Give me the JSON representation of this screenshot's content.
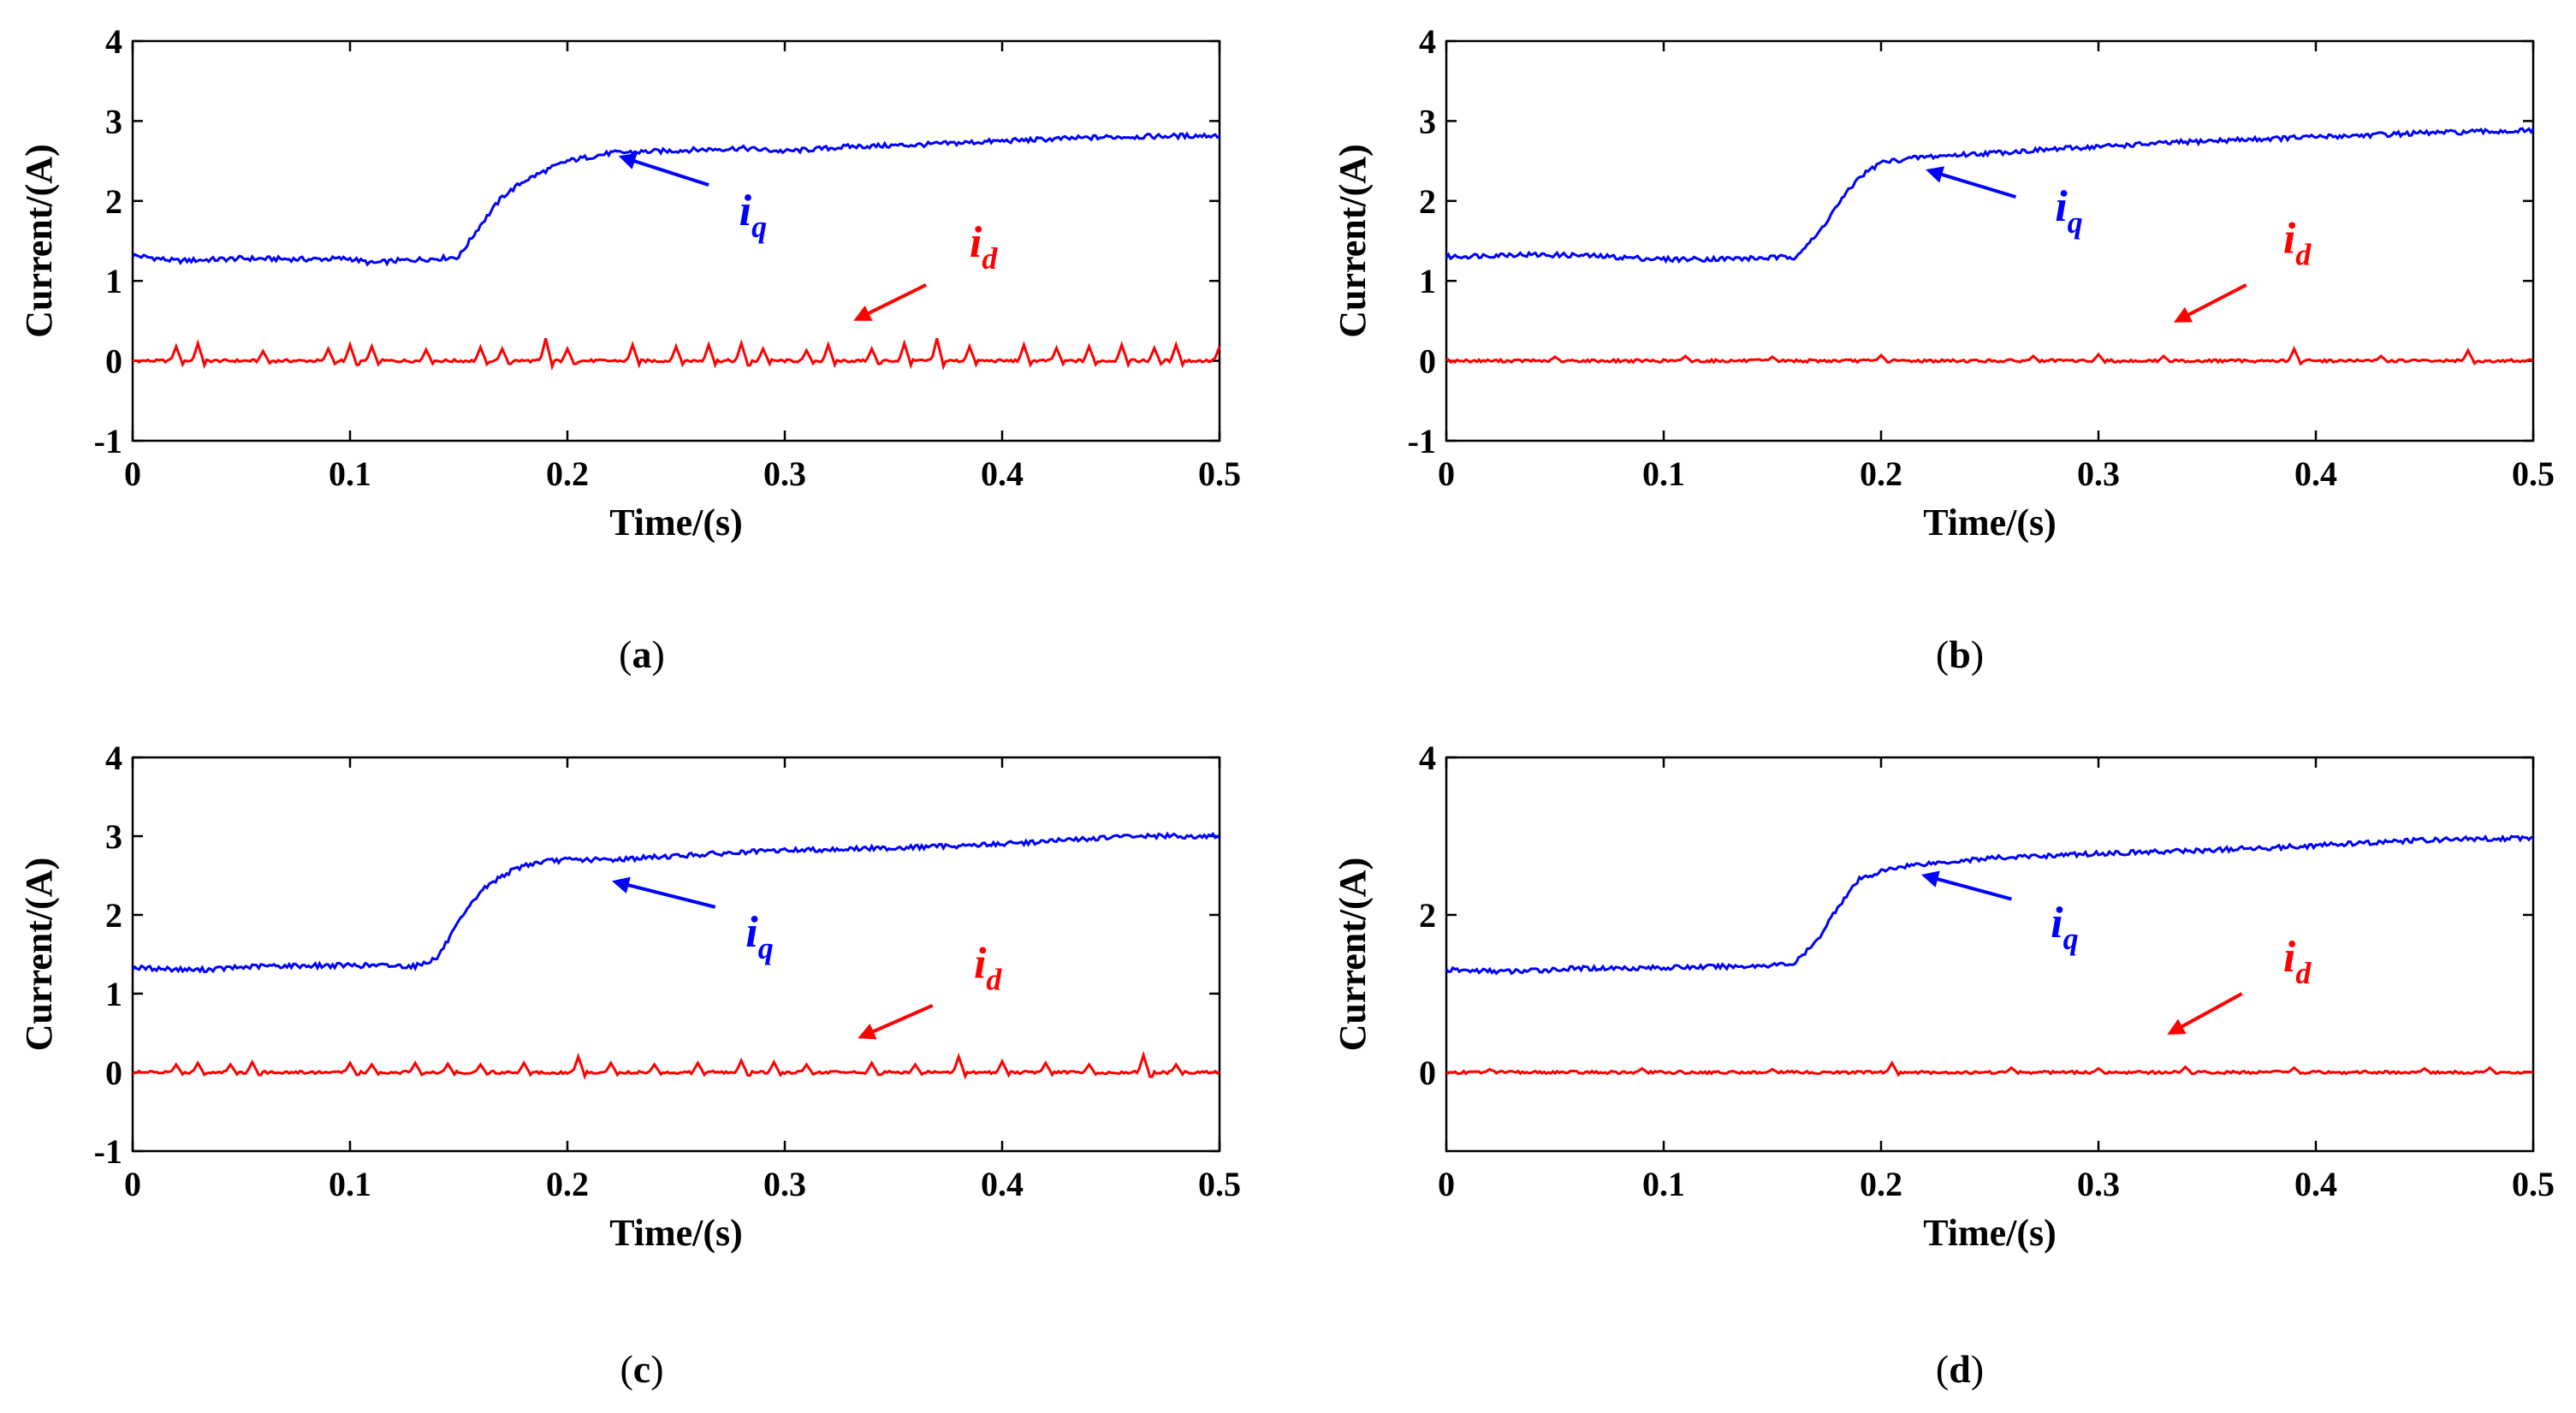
{
  "colors": {
    "iq": "#0000ff",
    "id": "#ff0000",
    "axis": "#000000"
  },
  "chart_data": [
    {
      "type": "line",
      "caption_label": "a",
      "xlabel": "Time/(s)",
      "ylabel": "Current/(A)",
      "xlim": [
        0,
        0.5
      ],
      "ylim": [
        -1,
        4
      ],
      "xticks": [
        0,
        0.1,
        0.2,
        0.3,
        0.4,
        0.5
      ],
      "yticks": [
        -1,
        0,
        1,
        2,
        3,
        4
      ],
      "xtick_labels": [
        "0",
        "0.1",
        "0.2",
        "0.3",
        "0.4",
        "0.5"
      ],
      "ytick_labels": [
        "-1",
        "0",
        "1",
        "2",
        "3",
        "4"
      ],
      "series": [
        {
          "name": "iq",
          "label_main": "i",
          "label_sub": "q",
          "x": [
            0,
            0.02,
            0.05,
            0.08,
            0.1,
            0.11,
            0.12,
            0.14,
            0.15,
            0.16,
            0.17,
            0.18,
            0.19,
            0.2,
            0.22,
            0.25,
            0.28,
            0.3,
            0.33,
            0.36,
            0.4,
            0.45,
            0.5
          ],
          "values": [
            1.32,
            1.25,
            1.28,
            1.27,
            1.28,
            1.22,
            1.25,
            1.28,
            1.3,
            1.7,
            2.05,
            2.25,
            2.38,
            2.5,
            2.6,
            2.63,
            2.66,
            2.62,
            2.68,
            2.7,
            2.75,
            2.8,
            2.82
          ]
        },
        {
          "name": "id",
          "label_main": "i",
          "label_sub": "d",
          "baseline": 0.0,
          "spikes": [
            [
              0.02,
              0.18
            ],
            [
              0.03,
              0.22
            ],
            [
              0.06,
              0.12
            ],
            [
              0.09,
              0.15
            ],
            [
              0.1,
              0.2
            ],
            [
              0.11,
              0.18
            ],
            [
              0.135,
              0.14
            ],
            [
              0.16,
              0.17
            ],
            [
              0.17,
              0.15
            ],
            [
              0.19,
              0.28
            ],
            [
              0.2,
              0.15
            ],
            [
              0.23,
              0.2
            ],
            [
              0.25,
              0.18
            ],
            [
              0.265,
              0.2
            ],
            [
              0.28,
              0.22
            ],
            [
              0.29,
              0.15
            ],
            [
              0.31,
              0.13
            ],
            [
              0.32,
              0.2
            ],
            [
              0.34,
              0.15
            ],
            [
              0.355,
              0.22
            ],
            [
              0.37,
              0.28
            ],
            [
              0.385,
              0.18
            ],
            [
              0.41,
              0.2
            ],
            [
              0.425,
              0.16
            ],
            [
              0.44,
              0.18
            ],
            [
              0.455,
              0.2
            ],
            [
              0.47,
              0.16
            ],
            [
              0.48,
              0.2
            ],
            [
              0.5,
              0.18
            ]
          ]
        }
      ],
      "arrows": {
        "iq": {
          "from": [
            0.265,
            2.2
          ],
          "to": [
            0.225,
            2.55
          ]
        },
        "id": {
          "from": [
            0.365,
            0.95
          ],
          "to": [
            0.333,
            0.52
          ]
        }
      },
      "labels": {
        "iq": {
          "at": [
            0.279,
            1.7
          ]
        },
        "id": {
          "at": [
            0.385,
            1.3
          ]
        }
      }
    },
    {
      "type": "line",
      "caption_label": "b",
      "xlabel": "Time/(s)",
      "ylabel": "Current/(A)",
      "xlim": [
        0,
        0.5
      ],
      "ylim": [
        -1,
        4
      ],
      "xticks": [
        0,
        0.1,
        0.2,
        0.3,
        0.4,
        0.5
      ],
      "yticks": [
        -1,
        0,
        1,
        2,
        3,
        4
      ],
      "xtick_labels": [
        "0",
        "0.1",
        "0.2",
        "0.3",
        "0.4",
        "0.5"
      ],
      "ytick_labels": [
        "-1",
        "0",
        "1",
        "2",
        "3",
        "4"
      ],
      "series": [
        {
          "name": "iq",
          "label_main": "i",
          "label_sub": "q",
          "x": [
            0,
            0.03,
            0.06,
            0.1,
            0.14,
            0.16,
            0.17,
            0.18,
            0.19,
            0.2,
            0.21,
            0.22,
            0.25,
            0.3,
            0.35,
            0.4,
            0.45,
            0.5
          ],
          "values": [
            1.3,
            1.33,
            1.32,
            1.27,
            1.28,
            1.3,
            1.55,
            1.95,
            2.3,
            2.48,
            2.52,
            2.55,
            2.6,
            2.68,
            2.75,
            2.8,
            2.85,
            2.88
          ]
        },
        {
          "name": "id",
          "label_main": "i",
          "label_sub": "d",
          "baseline": 0.0,
          "spikes": [
            [
              0.05,
              0.05
            ],
            [
              0.11,
              0.06
            ],
            [
              0.15,
              0.05
            ],
            [
              0.2,
              0.07
            ],
            [
              0.27,
              0.06
            ],
            [
              0.3,
              0.08
            ],
            [
              0.33,
              0.06
            ],
            [
              0.39,
              0.15
            ],
            [
              0.43,
              0.06
            ],
            [
              0.47,
              0.13
            ]
          ]
        }
      ],
      "arrows": {
        "iq": {
          "from": [
            0.262,
            2.05
          ],
          "to": [
            0.222,
            2.38
          ]
        },
        "id": {
          "from": [
            0.368,
            0.95
          ],
          "to": [
            0.336,
            0.5
          ]
        }
      },
      "labels": {
        "iq": {
          "at": [
            0.28,
            1.75
          ]
        },
        "id": {
          "at": [
            0.385,
            1.35
          ]
        }
      }
    },
    {
      "type": "line",
      "caption_label": "c",
      "xlabel": "Time/(s)",
      "ylabel": "Current/(A)",
      "xlim": [
        0,
        0.5
      ],
      "ylim": [
        -1,
        4
      ],
      "xticks": [
        0,
        0.1,
        0.2,
        0.3,
        0.4,
        0.5
      ],
      "yticks": [
        -1,
        0,
        1,
        2,
        3,
        4
      ],
      "xtick_labels": [
        "0",
        "0.1",
        "0.2",
        "0.3",
        "0.4",
        "0.5"
      ],
      "ytick_labels": [
        "-1",
        "0",
        "1",
        "2",
        "3",
        "4"
      ],
      "series": [
        {
          "name": "iq",
          "label_main": "i",
          "label_sub": "q",
          "x": [
            0,
            0.03,
            0.06,
            0.1,
            0.13,
            0.14,
            0.15,
            0.16,
            0.17,
            0.18,
            0.19,
            0.2,
            0.22,
            0.25,
            0.3,
            0.35,
            0.4,
            0.46,
            0.5
          ],
          "values": [
            1.33,
            1.3,
            1.35,
            1.36,
            1.35,
            1.45,
            1.9,
            2.3,
            2.5,
            2.63,
            2.68,
            2.7,
            2.7,
            2.75,
            2.82,
            2.85,
            2.9,
            3.0,
            3.0
          ]
        },
        {
          "name": "id",
          "label_main": "i",
          "label_sub": "d",
          "baseline": 0.0,
          "spikes": [
            [
              0.02,
              0.1
            ],
            [
              0.03,
              0.12
            ],
            [
              0.045,
              0.1
            ],
            [
              0.055,
              0.13
            ],
            [
              0.1,
              0.12
            ],
            [
              0.11,
              0.1
            ],
            [
              0.13,
              0.12
            ],
            [
              0.145,
              0.11
            ],
            [
              0.16,
              0.1
            ],
            [
              0.18,
              0.12
            ],
            [
              0.205,
              0.2
            ],
            [
              0.22,
              0.12
            ],
            [
              0.24,
              0.1
            ],
            [
              0.26,
              0.12
            ],
            [
              0.28,
              0.15
            ],
            [
              0.295,
              0.13
            ],
            [
              0.31,
              0.1
            ],
            [
              0.34,
              0.12
            ],
            [
              0.36,
              0.1
            ],
            [
              0.38,
              0.2
            ],
            [
              0.4,
              0.14
            ],
            [
              0.42,
              0.12
            ],
            [
              0.44,
              0.1
            ],
            [
              0.465,
              0.22
            ],
            [
              0.48,
              0.1
            ]
          ]
        }
      ],
      "arrows": {
        "iq": {
          "from": [
            0.268,
            2.1
          ],
          "to": [
            0.222,
            2.42
          ]
        },
        "id": {
          "from": [
            0.368,
            0.85
          ],
          "to": [
            0.335,
            0.45
          ]
        }
      },
      "labels": {
        "iq": {
          "at": [
            0.282,
            1.6
          ]
        },
        "id": {
          "at": [
            0.387,
            1.2
          ]
        }
      }
    },
    {
      "type": "line",
      "caption_label": "d",
      "xlabel": "Time/(s)",
      "ylabel": "Current/(A)",
      "xlim": [
        0,
        0.5
      ],
      "ylim": [
        -1,
        4
      ],
      "xticks": [
        0,
        0.1,
        0.2,
        0.3,
        0.4,
        0.5
      ],
      "yticks": [
        0,
        2,
        4
      ],
      "xtick_labels": [
        "0",
        "0.1",
        "0.2",
        "0.3",
        "0.4",
        "0.5"
      ],
      "ytick_labels": [
        "0",
        "2",
        "4"
      ],
      "series": [
        {
          "name": "iq",
          "label_main": "i",
          "label_sub": "q",
          "x": [
            0,
            0.03,
            0.06,
            0.1,
            0.14,
            0.16,
            0.17,
            0.18,
            0.19,
            0.2,
            0.21,
            0.22,
            0.25,
            0.3,
            0.35,
            0.4,
            0.45,
            0.5
          ],
          "values": [
            1.3,
            1.28,
            1.32,
            1.33,
            1.35,
            1.38,
            1.65,
            2.1,
            2.45,
            2.55,
            2.62,
            2.65,
            2.72,
            2.78,
            2.82,
            2.88,
            2.95,
            2.98
          ]
        },
        {
          "name": "id",
          "label_main": "i",
          "label_sub": "d",
          "baseline": 0.0,
          "spikes": [
            [
              0.02,
              0.04
            ],
            [
              0.09,
              0.05
            ],
            [
              0.15,
              0.04
            ],
            [
              0.205,
              0.12
            ],
            [
              0.26,
              0.06
            ],
            [
              0.3,
              0.05
            ],
            [
              0.34,
              0.07
            ],
            [
              0.39,
              0.06
            ],
            [
              0.45,
              0.05
            ],
            [
              0.48,
              0.06
            ]
          ]
        }
      ],
      "arrows": {
        "iq": {
          "from": [
            0.26,
            2.2
          ],
          "to": [
            0.22,
            2.5
          ]
        },
        "id": {
          "from": [
            0.366,
            1.0
          ],
          "to": [
            0.333,
            0.5
          ]
        }
      },
      "labels": {
        "iq": {
          "at": [
            0.278,
            1.72
          ]
        },
        "id": {
          "at": [
            0.385,
            1.28
          ]
        }
      }
    }
  ]
}
